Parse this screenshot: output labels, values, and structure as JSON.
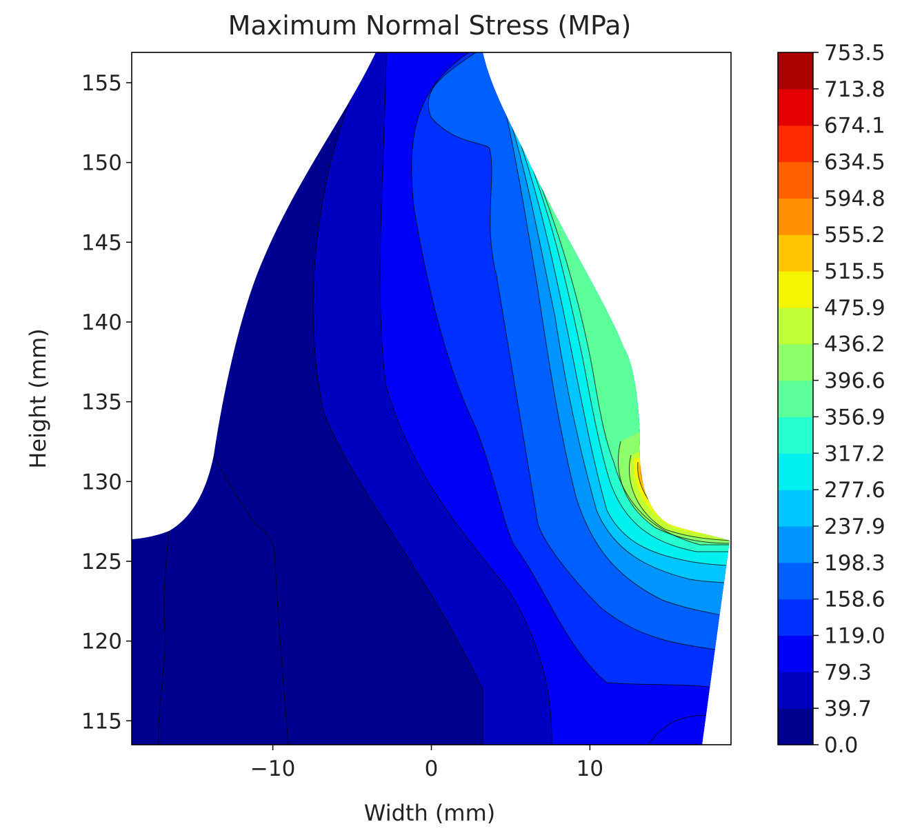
{
  "chart_data": {
    "type": "heatmap",
    "subtype": "filled-contour",
    "title": "Maximum Normal Stress (MPa)",
    "xlabel": "Width (mm)",
    "ylabel": "Height (mm)",
    "xlim": [
      -18.9,
      18.9
    ],
    "ylim": [
      113.5,
      156.9
    ],
    "xticks": [
      -10,
      0,
      10
    ],
    "xtick_labels": [
      "−10",
      "0",
      "10"
    ],
    "yticks": [
      115,
      120,
      125,
      130,
      135,
      140,
      145,
      150,
      155
    ],
    "yticks_labels": [
      "115",
      "120",
      "125",
      "130",
      "135",
      "140",
      "145",
      "150",
      "155"
    ],
    "colormap": "jet",
    "colorbar": {
      "levels": [
        0.0,
        39.7,
        79.3,
        119.0,
        158.6,
        198.3,
        237.9,
        277.6,
        317.2,
        356.9,
        396.6,
        436.2,
        475.9,
        515.5,
        555.2,
        594.8,
        634.5,
        674.1,
        713.8,
        753.5
      ],
      "labels": [
        "0.0",
        "39.7",
        "79.3",
        "119.0",
        "158.6",
        "198.3",
        "237.9",
        "277.6",
        "317.2",
        "356.9",
        "396.6",
        "436.2",
        "475.9",
        "515.5",
        "555.2",
        "594.8",
        "634.5",
        "674.1",
        "713.8",
        "753.5"
      ],
      "colors": [
        "#00008f",
        "#0000c0",
        "#0000f7",
        "#0030ff",
        "#0060ff",
        "#0094ff",
        "#00c6ff",
        "#00f0f0",
        "#27ffcf",
        "#5cff9a",
        "#8dff6a",
        "#c0ff36",
        "#f5f500",
        "#ffc400",
        "#ff9000",
        "#ff6000",
        "#ff2c00",
        "#e40000",
        "#aa0000"
      ]
    },
    "grid": false,
    "legend": "colorbar-right"
  }
}
